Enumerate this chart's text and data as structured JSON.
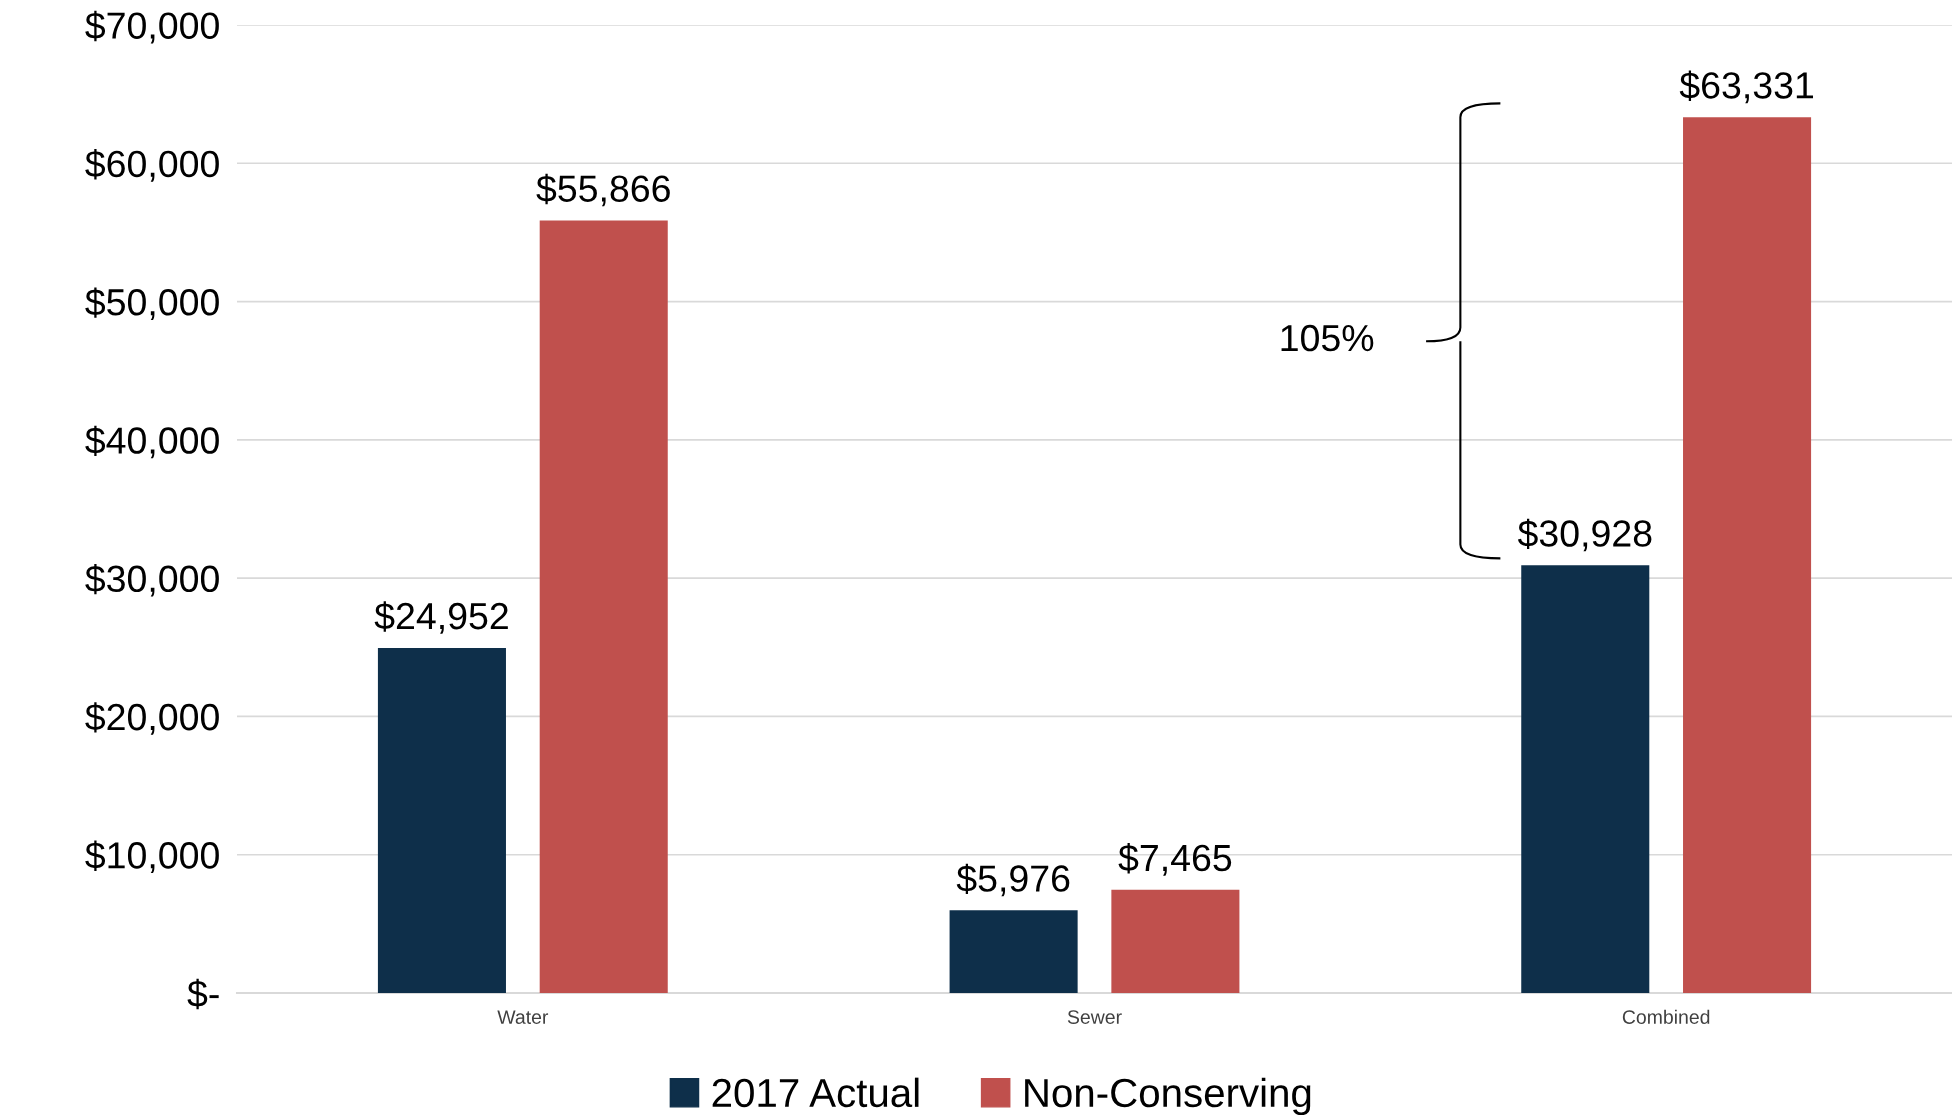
{
  "chart_data": {
    "type": "bar",
    "categories": [
      "Water",
      "Sewer",
      "Combined"
    ],
    "series": [
      {
        "name": "2017 Actual",
        "color": "#0e2f4a",
        "values": [
          24952,
          5976,
          30928
        ],
        "value_labels": [
          "$24,952",
          "$5,976",
          "$30,928"
        ]
      },
      {
        "name": "Non-Conserving",
        "color": "#c0504d",
        "values": [
          55866,
          7465,
          63331
        ],
        "value_labels": [
          "$55,866",
          "$7,465",
          "$63,331"
        ]
      }
    ],
    "ylim": [
      0,
      70000
    ],
    "yticks": [
      {
        "value": 0,
        "label": "$-"
      },
      {
        "value": 10000,
        "label": "$10,000"
      },
      {
        "value": 20000,
        "label": "$20,000"
      },
      {
        "value": 30000,
        "label": "$30,000"
      },
      {
        "value": 40000,
        "label": "$40,000"
      },
      {
        "value": 50000,
        "label": "$50,000"
      },
      {
        "value": 60000,
        "label": "$60,000"
      },
      {
        "value": 70000,
        "label": "$70,000"
      }
    ],
    "grid": "y",
    "legend": "bottom",
    "annotations": [
      "105%"
    ]
  }
}
